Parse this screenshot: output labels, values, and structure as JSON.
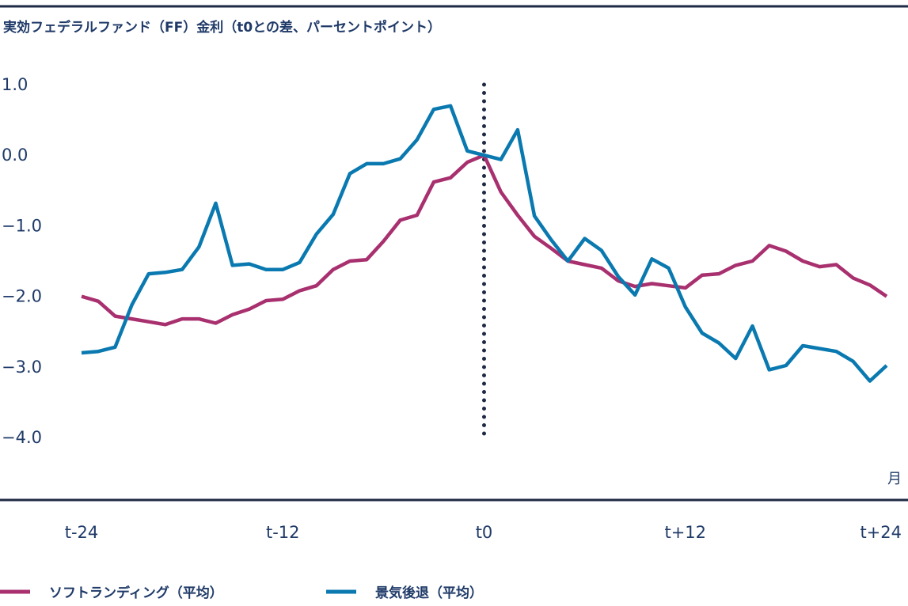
{
  "chart_data": {
    "type": "line",
    "title": "実効フェデラルファンド（FF）金利（t0との差、パーセントポイント）",
    "ylim": [
      -4.0,
      1.0
    ],
    "y_ticks": [
      "1.0",
      "0.0",
      "−1.0",
      "−2.0",
      "−3.0",
      "−4.0"
    ],
    "y_tick_values": [
      1,
      0,
      -1,
      -2,
      -3,
      -4
    ],
    "x_unit_label": "月",
    "x_ticks": [
      "t-24",
      "t-12",
      "t0",
      "t+12",
      "t+24"
    ],
    "x_tick_values": [
      -24,
      -12,
      0,
      12,
      24
    ],
    "xlim": [
      -24,
      24
    ],
    "vline_x": 0,
    "series": [
      {
        "name": "ソフトランディング（平均）",
        "color": "#a8306f",
        "x": [
          -24,
          -23,
          -22,
          -21,
          -20,
          -19,
          -18,
          -17,
          -16,
          -15,
          -14,
          -13,
          -12,
          -11,
          -10,
          -9,
          -8,
          -7,
          -6,
          -5,
          -4,
          -3,
          -2,
          -1,
          0,
          1,
          2,
          3,
          4,
          5,
          6,
          7,
          8,
          9,
          10,
          11,
          12,
          13,
          14,
          15,
          16,
          17,
          18,
          19,
          20,
          21,
          22,
          23,
          24
        ],
        "values": [
          -2.0,
          -2.07,
          -2.28,
          -2.32,
          -2.36,
          -2.4,
          -2.32,
          -2.32,
          -2.38,
          -2.26,
          -2.18,
          -2.06,
          -2.04,
          -1.92,
          -1.85,
          -1.62,
          -1.5,
          -1.48,
          -1.22,
          -0.92,
          -0.85,
          -0.38,
          -0.32,
          -0.1,
          0.0,
          -0.52,
          -0.85,
          -1.15,
          -1.32,
          -1.5,
          -1.55,
          -1.6,
          -1.78,
          -1.86,
          -1.82,
          -1.85,
          -1.88,
          -1.7,
          -1.68,
          -1.56,
          -1.5,
          -1.28,
          -1.36,
          -1.5,
          -1.58,
          -1.55,
          -1.74,
          -1.84,
          -2.0
        ]
      },
      {
        "name": "景気後退（平均）",
        "color": "#0a79b0",
        "x": [
          -24,
          -23,
          -22,
          -21,
          -20,
          -19,
          -18,
          -17,
          -16,
          -15,
          -14,
          -13,
          -12,
          -11,
          -10,
          -9,
          -8,
          -7,
          -6,
          -5,
          -4,
          -3,
          -2,
          -1,
          0,
          1,
          2,
          3,
          4,
          5,
          6,
          7,
          8,
          9,
          10,
          11,
          12,
          13,
          14,
          15,
          16,
          17,
          18,
          19,
          20,
          21,
          22,
          23,
          24
        ],
        "values": [
          -2.8,
          -2.78,
          -2.72,
          -2.12,
          -1.68,
          -1.66,
          -1.62,
          -1.3,
          -0.68,
          -1.56,
          -1.54,
          -1.62,
          -1.62,
          -1.52,
          -1.12,
          -0.84,
          -0.26,
          -0.12,
          -0.12,
          -0.05,
          0.22,
          0.65,
          0.7,
          0.06,
          0.0,
          -0.06,
          0.36,
          -0.86,
          -1.2,
          -1.5,
          -1.18,
          -1.35,
          -1.72,
          -1.98,
          -1.47,
          -1.6,
          -2.15,
          -2.52,
          -2.66,
          -2.88,
          -2.42,
          -3.04,
          -2.98,
          -2.7,
          -2.74,
          -2.78,
          -2.92,
          -3.2,
          -2.98
        ]
      }
    ],
    "grid": false,
    "legend_position": "bottom-left"
  }
}
